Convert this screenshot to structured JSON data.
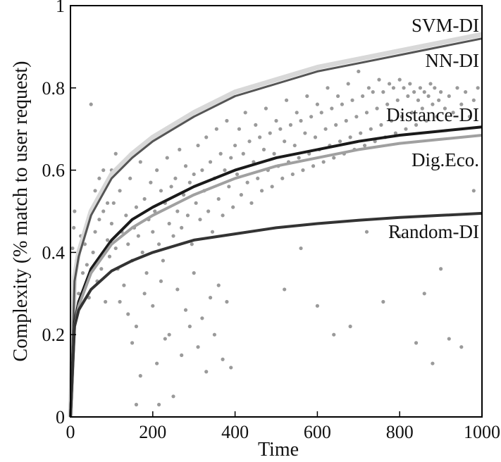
{
  "chart_data": {
    "type": "line",
    "title": "",
    "xlabel": "Time",
    "ylabel": "Complexity (% match to user request)",
    "xlim": [
      0,
      1000
    ],
    "ylim": [
      0,
      1
    ],
    "x_ticks": [
      0,
      200,
      400,
      600,
      800,
      1000
    ],
    "y_ticks": [
      0,
      0.2,
      0.4,
      0.6,
      0.8,
      1
    ],
    "y_tick_labels": [
      "0",
      "0.2",
      "0.4",
      "0.6",
      "0.8",
      "1"
    ],
    "grid": false,
    "legend": "inline labels at right end of curves",
    "x": [
      0,
      10,
      20,
      50,
      100,
      150,
      200,
      300,
      400,
      500,
      600,
      700,
      800,
      900,
      1000
    ],
    "series": [
      {
        "name": "SVM-DI",
        "color": "#d8d8d8",
        "values": [
          0,
          0.34,
          0.4,
          0.5,
          0.59,
          0.64,
          0.68,
          0.74,
          0.79,
          0.82,
          0.85,
          0.87,
          0.89,
          0.91,
          0.93
        ]
      },
      {
        "name": "NN-DI",
        "color": "#555555",
        "values": [
          0,
          0.33,
          0.39,
          0.49,
          0.58,
          0.63,
          0.67,
          0.73,
          0.78,
          0.81,
          0.84,
          0.86,
          0.88,
          0.9,
          0.92
        ]
      },
      {
        "name": "Distance-DI",
        "color": "#1a1a1a",
        "values": [
          0,
          0.23,
          0.28,
          0.36,
          0.43,
          0.48,
          0.51,
          0.56,
          0.6,
          0.63,
          0.65,
          0.67,
          0.685,
          0.695,
          0.705
        ]
      },
      {
        "name": "Dig.Eco.",
        "color": "#a0a0a0",
        "values": [
          0,
          0.22,
          0.27,
          0.35,
          0.42,
          0.46,
          0.49,
          0.54,
          0.58,
          0.61,
          0.63,
          0.65,
          0.665,
          0.675,
          0.685
        ]
      },
      {
        "name": "Random-DI",
        "color": "#333333",
        "values": [
          0,
          0.22,
          0.26,
          0.31,
          0.355,
          0.38,
          0.4,
          0.43,
          0.445,
          0.46,
          0.47,
          0.478,
          0.485,
          0.49,
          0.495
        ]
      }
    ],
    "scatter": {
      "color": "#9a9a9a",
      "points": [
        [
          5,
          0.41
        ],
        [
          8,
          0.46
        ],
        [
          10,
          0.5
        ],
        [
          15,
          0.38
        ],
        [
          20,
          0.3
        ],
        [
          25,
          0.44
        ],
        [
          30,
          0.35
        ],
        [
          35,
          0.42
        ],
        [
          40,
          0.37
        ],
        [
          45,
          0.29
        ],
        [
          50,
          0.76
        ],
        [
          55,
          0.4
        ],
        [
          60,
          0.45
        ],
        [
          65,
          0.33
        ],
        [
          70,
          0.48
        ],
        [
          75,
          0.36
        ],
        [
          80,
          0.5
        ],
        [
          85,
          0.28
        ],
        [
          90,
          0.43
        ],
        [
          95,
          0.39
        ],
        [
          100,
          0.47
        ],
        [
          105,
          0.52
        ],
        [
          110,
          0.41
        ],
        [
          115,
          0.36
        ],
        [
          120,
          0.55
        ],
        [
          125,
          0.45
        ],
        [
          130,
          0.32
        ],
        [
          135,
          0.49
        ],
        [
          140,
          0.42
        ],
        [
          145,
          0.58
        ],
        [
          150,
          0.38
        ],
        [
          155,
          0.46
        ],
        [
          160,
          0.51
        ],
        [
          165,
          0.44
        ],
        [
          170,
          0.62
        ],
        [
          175,
          0.4
        ],
        [
          180,
          0.53
        ],
        [
          185,
          0.35
        ],
        [
          190,
          0.48
        ],
        [
          195,
          0.57
        ],
        [
          200,
          0.45
        ],
        [
          205,
          0.5
        ],
        [
          210,
          0.6
        ],
        [
          215,
          0.42
        ],
        [
          220,
          0.55
        ],
        [
          225,
          0.38
        ],
        [
          230,
          0.52
        ],
        [
          235,
          0.63
        ],
        [
          240,
          0.47
        ],
        [
          245,
          0.56
        ],
        [
          250,
          0.44
        ],
        [
          255,
          0.58
        ],
        [
          260,
          0.5
        ],
        [
          265,
          0.65
        ],
        [
          270,
          0.46
        ],
        [
          275,
          0.54
        ],
        [
          280,
          0.61
        ],
        [
          285,
          0.49
        ],
        [
          290,
          0.57
        ],
        [
          295,
          0.42
        ],
        [
          300,
          0.59
        ],
        [
          305,
          0.52
        ],
        [
          310,
          0.66
        ],
        [
          315,
          0.48
        ],
        [
          320,
          0.6
        ],
        [
          325,
          0.55
        ],
        [
          330,
          0.68
        ],
        [
          335,
          0.5
        ],
        [
          340,
          0.62
        ],
        [
          345,
          0.45
        ],
        [
          350,
          0.58
        ],
        [
          355,
          0.7
        ],
        [
          360,
          0.53
        ],
        [
          365,
          0.64
        ],
        [
          370,
          0.49
        ],
        [
          375,
          0.6
        ],
        [
          380,
          0.72
        ],
        [
          385,
          0.56
        ],
        [
          390,
          0.63
        ],
        [
          395,
          0.51
        ],
        [
          400,
          0.66
        ],
        [
          405,
          0.59
        ],
        [
          410,
          0.7
        ],
        [
          415,
          0.54
        ],
        [
          420,
          0.64
        ],
        [
          425,
          0.74
        ],
        [
          430,
          0.57
        ],
        [
          435,
          0.67
        ],
        [
          440,
          0.52
        ],
        [
          445,
          0.62
        ],
        [
          450,
          0.71
        ],
        [
          455,
          0.58
        ],
        [
          460,
          0.68
        ],
        [
          465,
          0.55
        ],
        [
          470,
          0.65
        ],
        [
          475,
          0.75
        ],
        [
          480,
          0.6
        ],
        [
          485,
          0.69
        ],
        [
          490,
          0.56
        ],
        [
          495,
          0.64
        ],
        [
          500,
          0.72
        ],
        [
          505,
          0.61
        ],
        [
          510,
          0.7
        ],
        [
          515,
          0.58
        ],
        [
          520,
          0.67
        ],
        [
          525,
          0.77
        ],
        [
          530,
          0.62
        ],
        [
          535,
          0.71
        ],
        [
          540,
          0.59
        ],
        [
          545,
          0.66
        ],
        [
          550,
          0.74
        ],
        [
          555,
          0.63
        ],
        [
          560,
          0.72
        ],
        [
          565,
          0.6
        ],
        [
          570,
          0.69
        ],
        [
          575,
          0.78
        ],
        [
          580,
          0.64
        ],
        [
          585,
          0.73
        ],
        [
          590,
          0.61
        ],
        [
          595,
          0.68
        ],
        [
          600,
          0.76
        ],
        [
          605,
          0.65
        ],
        [
          610,
          0.74
        ],
        [
          615,
          0.62
        ],
        [
          620,
          0.7
        ],
        [
          625,
          0.8
        ],
        [
          630,
          0.66
        ],
        [
          635,
          0.75
        ],
        [
          640,
          0.63
        ],
        [
          645,
          0.71
        ],
        [
          650,
          0.78
        ],
        [
          655,
          0.67
        ],
        [
          660,
          0.76
        ],
        [
          665,
          0.64
        ],
        [
          670,
          0.72
        ],
        [
          675,
          0.81
        ],
        [
          680,
          0.68
        ],
        [
          685,
          0.77
        ],
        [
          690,
          0.65
        ],
        [
          695,
          0.73
        ],
        [
          700,
          0.84
        ],
        [
          705,
          0.69
        ],
        [
          710,
          0.78
        ],
        [
          715,
          0.66
        ],
        [
          720,
          0.74
        ],
        [
          725,
          0.8
        ],
        [
          730,
          0.7
        ],
        [
          735,
          0.79
        ],
        [
          740,
          0.67
        ],
        [
          745,
          0.75
        ],
        [
          750,
          0.82
        ],
        [
          755,
          0.71
        ],
        [
          760,
          0.79
        ],
        [
          765,
          0.68
        ],
        [
          770,
          0.76
        ],
        [
          775,
          0.81
        ],
        [
          780,
          0.72
        ],
        [
          785,
          0.8
        ],
        [
          790,
          0.69
        ],
        [
          795,
          0.77
        ],
        [
          800,
          0.82
        ],
        [
          805,
          0.73
        ],
        [
          810,
          0.8
        ],
        [
          815,
          0.7
        ],
        [
          820,
          0.78
        ],
        [
          825,
          0.81
        ],
        [
          830,
          0.74
        ],
        [
          835,
          0.79
        ],
        [
          840,
          0.71
        ],
        [
          845,
          0.77
        ],
        [
          850,
          0.8
        ],
        [
          855,
          0.75
        ],
        [
          860,
          0.79
        ],
        [
          865,
          0.72
        ],
        [
          870,
          0.78
        ],
        [
          875,
          0.81
        ],
        [
          880,
          0.76
        ],
        [
          885,
          0.8
        ],
        [
          890,
          0.73
        ],
        [
          895,
          0.77
        ],
        [
          900,
          0.79
        ],
        [
          910,
          0.75
        ],
        [
          920,
          0.78
        ],
        [
          930,
          0.74
        ],
        [
          940,
          0.8
        ],
        [
          950,
          0.76
        ],
        [
          960,
          0.79
        ],
        [
          970,
          0.73
        ],
        [
          980,
          0.77
        ],
        [
          990,
          0.8
        ],
        [
          120,
          0.28
        ],
        [
          140,
          0.25
        ],
        [
          160,
          0.22
        ],
        [
          180,
          0.3
        ],
        [
          200,
          0.27
        ],
        [
          220,
          0.33
        ],
        [
          240,
          0.2
        ],
        [
          260,
          0.31
        ],
        [
          280,
          0.26
        ],
        [
          300,
          0.35
        ],
        [
          320,
          0.24
        ],
        [
          340,
          0.29
        ],
        [
          360,
          0.32
        ],
        [
          380,
          0.28
        ],
        [
          150,
          0.18
        ],
        [
          170,
          0.1
        ],
        [
          210,
          0.13
        ],
        [
          230,
          0.19
        ],
        [
          250,
          0.05
        ],
        [
          270,
          0.15
        ],
        [
          290,
          0.22
        ],
        [
          310,
          0.17
        ],
        [
          330,
          0.11
        ],
        [
          350,
          0.2
        ],
        [
          370,
          0.14
        ],
        [
          390,
          0.12
        ],
        [
          160,
          0.03
        ],
        [
          215,
          0.03
        ],
        [
          520,
          0.31
        ],
        [
          560,
          0.41
        ],
        [
          600,
          0.27
        ],
        [
          640,
          0.2
        ],
        [
          680,
          0.22
        ],
        [
          720,
          0.45
        ],
        [
          760,
          0.28
        ],
        [
          800,
          0.44
        ],
        [
          840,
          0.18
        ],
        [
          860,
          0.3
        ],
        [
          880,
          0.13
        ],
        [
          900,
          0.36
        ],
        [
          920,
          0.19
        ],
        [
          950,
          0.17
        ],
        [
          980,
          0.55
        ],
        [
          60,
          0.55
        ],
        [
          70,
          0.58
        ],
        [
          80,
          0.6
        ],
        [
          90,
          0.52
        ],
        [
          100,
          0.6
        ],
        [
          110,
          0.64
        ],
        [
          130,
          0.62
        ]
      ]
    }
  }
}
